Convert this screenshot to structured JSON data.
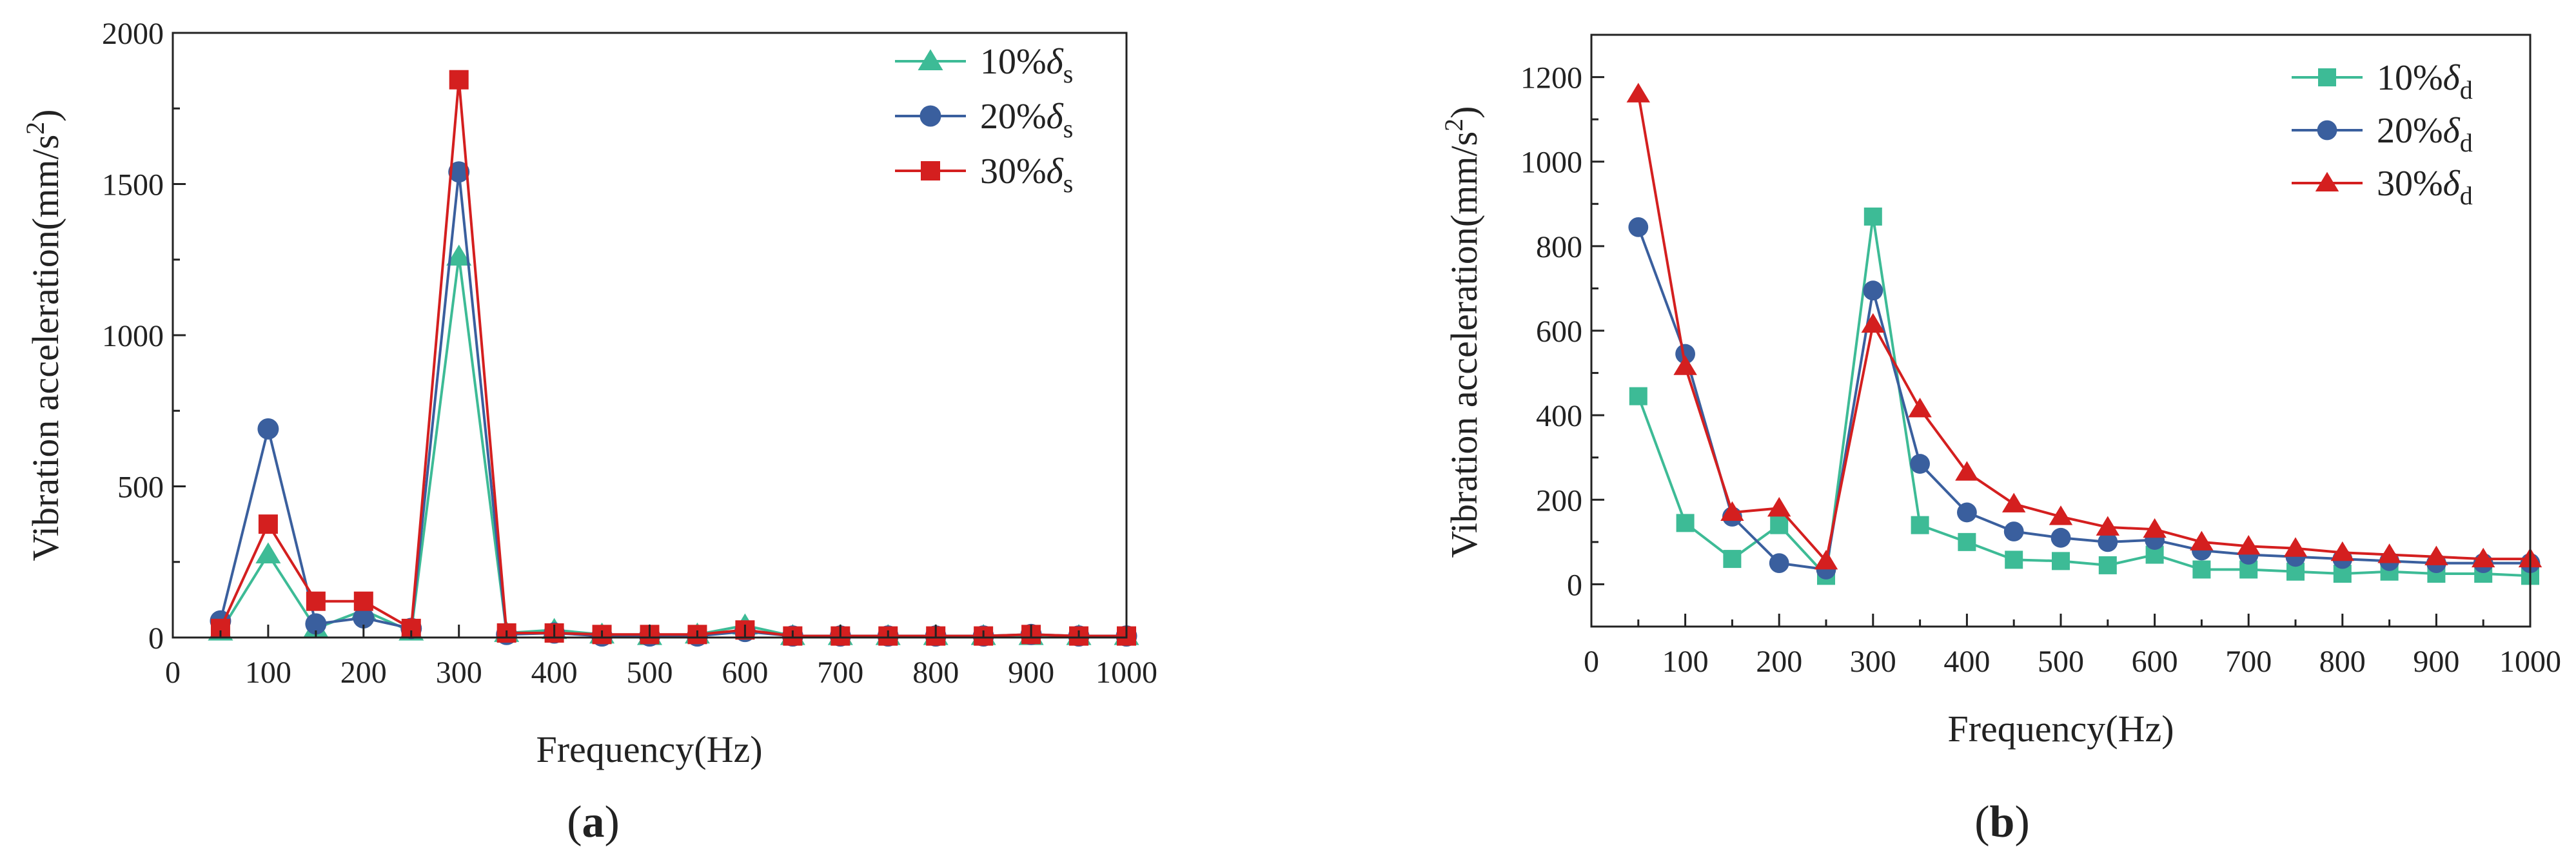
{
  "chart_data": [
    {
      "type": "line",
      "panel_label": "a",
      "xlabel": "Frequency(Hz)",
      "ylabel": "Vibration acceleration(mm/s",
      "ylabel_sup": "2",
      "ylabel_close": ")",
      "xlim": [
        0,
        1000
      ],
      "ylim": [
        0,
        2000
      ],
      "xticks": [
        0,
        100,
        200,
        300,
        400,
        500,
        600,
        700,
        800,
        900,
        1000
      ],
      "yticks": [
        0,
        500,
        1000,
        1500,
        2000
      ],
      "x": [
        50,
        100,
        150,
        200,
        250,
        300,
        350,
        400,
        450,
        500,
        550,
        600,
        650,
        700,
        750,
        800,
        850,
        900,
        950,
        1000
      ],
      "legend_position": "top-right",
      "series": [
        {
          "name": "10%δs",
          "label_prefix": "10%",
          "symbol": "δ",
          "subscript": "s",
          "color": "#3dbb96",
          "marker": "triangle",
          "values": [
            20,
            275,
            30,
            90,
            20,
            1260,
            15,
            25,
            10,
            5,
            10,
            40,
            5,
            5,
            5,
            5,
            5,
            5,
            5,
            5
          ]
        },
        {
          "name": "20%δs",
          "label_prefix": "20%",
          "symbol": "δ",
          "subscript": "s",
          "color": "#3a5f9e",
          "marker": "circle",
          "values": [
            55,
            690,
            45,
            65,
            30,
            1540,
            10,
            15,
            5,
            5,
            5,
            20,
            5,
            5,
            5,
            5,
            5,
            10,
            5,
            5
          ]
        },
        {
          "name": "30%δs",
          "label_prefix": "30%",
          "symbol": "δ",
          "subscript": "s",
          "color": "#d41f1f",
          "marker": "square",
          "values": [
            30,
            375,
            120,
            120,
            30,
            1845,
            15,
            15,
            10,
            10,
            10,
            25,
            5,
            5,
            5,
            5,
            5,
            10,
            5,
            5
          ]
        }
      ]
    },
    {
      "type": "line",
      "panel_label": "b",
      "xlabel": "Frequency(Hz)",
      "ylabel": "Vibration acceleration(mm/s",
      "ylabel_sup": "2",
      "ylabel_close": ")",
      "xlim": [
        0,
        1000
      ],
      "ylim": [
        -100,
        1300
      ],
      "xticks": [
        0,
        100,
        200,
        300,
        400,
        500,
        600,
        700,
        800,
        900,
        1000
      ],
      "yticks": [
        0,
        200,
        400,
        600,
        800,
        1000,
        1200
      ],
      "x": [
        50,
        100,
        150,
        200,
        250,
        300,
        350,
        400,
        450,
        500,
        550,
        600,
        650,
        700,
        750,
        800,
        850,
        900,
        950,
        1000
      ],
      "legend_position": "top-right",
      "series": [
        {
          "name": "10%δd",
          "label_prefix": "10%",
          "symbol": "δ",
          "subscript": "d",
          "color": "#3dbb96",
          "marker": "square",
          "values": [
            445,
            145,
            60,
            140,
            20,
            870,
            140,
            100,
            58,
            55,
            45,
            70,
            35,
            35,
            30,
            25,
            30,
            25,
            25,
            20
          ]
        },
        {
          "name": "20%δd",
          "label_prefix": "20%",
          "symbol": "δ",
          "subscript": "d",
          "color": "#3a5f9e",
          "marker": "circle",
          "values": [
            845,
            545,
            160,
            50,
            35,
            695,
            285,
            170,
            125,
            110,
            100,
            105,
            80,
            70,
            65,
            60,
            55,
            50,
            50,
            50
          ]
        },
        {
          "name": "30%δd",
          "label_prefix": "30%",
          "symbol": "δ",
          "subscript": "d",
          "color": "#d41f1f",
          "marker": "triangle",
          "values": [
            1160,
            515,
            170,
            180,
            55,
            615,
            415,
            265,
            190,
            160,
            135,
            130,
            100,
            90,
            85,
            75,
            70,
            65,
            60,
            60
          ]
        }
      ]
    }
  ]
}
